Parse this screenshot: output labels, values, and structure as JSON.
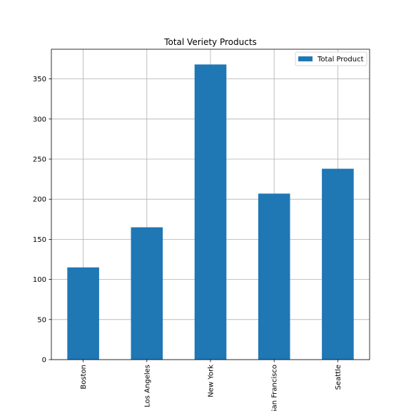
{
  "chart_data": {
    "type": "bar",
    "title": "Total Veriety Products",
    "xlabel": "",
    "ylabel": "",
    "categories": [
      "Boston",
      "Los Angeles",
      "New York",
      "San Francisco",
      "Seattle"
    ],
    "series": [
      {
        "name": "Total Product",
        "values": [
          115,
          165,
          368,
          207,
          238
        ],
        "color": "#1f77b4"
      }
    ],
    "ylim": [
      0,
      387
    ],
    "yticks": [
      0,
      50,
      100,
      150,
      200,
      250,
      300,
      350
    ],
    "grid": true,
    "legend_position": "top-right"
  }
}
